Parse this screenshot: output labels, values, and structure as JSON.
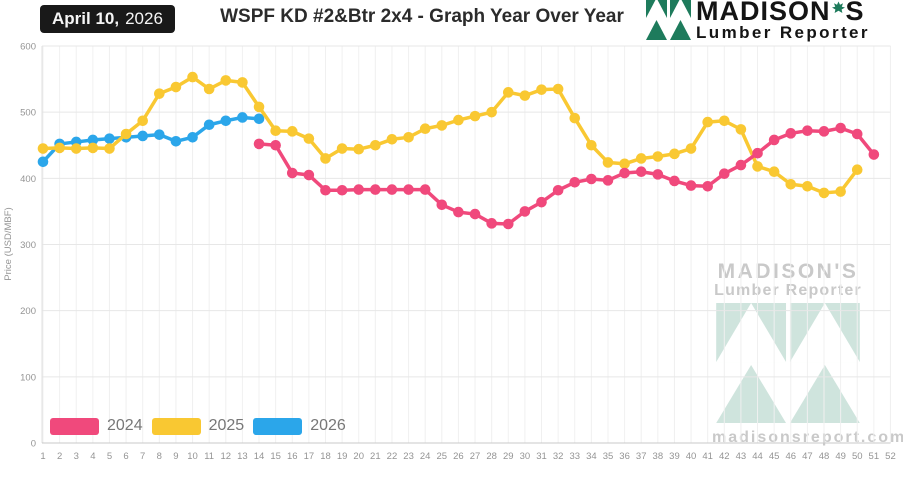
{
  "header": {
    "date_badge": {
      "date": "April 10,",
      "year": "2026"
    },
    "title": "WSPF KD #2&Btr 2x4 - Graph Year Over Year",
    "brand": {
      "name": "MADISON'S",
      "name_pre": "MADISON",
      "name_post": "S",
      "subtitle": "Lumber Reporter"
    }
  },
  "watermark": {
    "title": "MADISON'S",
    "subtitle": "Lumber Reporter",
    "url": "madisonsreport.com"
  },
  "colors": {
    "badge_bg": "#191919",
    "badge_text": "#f5f5f5",
    "logo_green": "#1E7B5C",
    "watermark_green": "#cfe4dd",
    "watermark_text": "#c9c9c9",
    "axis_text": "#949494",
    "legend_text": "#777777",
    "grid_horizontal": "#e7e7e7",
    "grid_vertical": "#f0f0f0",
    "axis_line_x": "#c9c9c9",
    "axis_line_y": "#e0e0e0"
  },
  "chart_data": {
    "type": "line",
    "title": "WSPF KD #2&Btr 2x4 - Graph Year Over Year",
    "xlabel": "",
    "ylabel": "Price (USD/MBF)",
    "ylim": [
      0,
      600
    ],
    "yticks": [
      0,
      100,
      200,
      300,
      400,
      500,
      600
    ],
    "xticks": [
      1,
      2,
      3,
      4,
      5,
      6,
      7,
      8,
      9,
      10,
      11,
      12,
      13,
      14,
      15,
      16,
      17,
      18,
      19,
      20,
      21,
      22,
      23,
      24,
      25,
      26,
      27,
      28,
      29,
      30,
      31,
      32,
      33,
      34,
      35,
      36,
      37,
      38,
      39,
      40,
      41,
      42,
      43,
      44,
      45,
      46,
      47,
      48,
      49,
      50,
      51,
      52
    ],
    "x_unit": "week",
    "grid": true,
    "legend_position": "bottom-left",
    "series": [
      {
        "name": "2024",
        "color": "#F0497C",
        "start_week": 14,
        "values": [
          452,
          450,
          408,
          405,
          382,
          382,
          383,
          383,
          383,
          383,
          383,
          360,
          349,
          346,
          332,
          331,
          350,
          364,
          382,
          394,
          399,
          397,
          408,
          410,
          406,
          396,
          389,
          388,
          407,
          420,
          438,
          458,
          468,
          472,
          471,
          476,
          467,
          436
        ]
      },
      {
        "name": "2025",
        "color": "#F9C832",
        "start_week": 1,
        "values": [
          445,
          446,
          445,
          446,
          445,
          467,
          487,
          528,
          538,
          553,
          535,
          548,
          545,
          508,
          472,
          471,
          460,
          430,
          445,
          444,
          450,
          459,
          462,
          475,
          480,
          488,
          494,
          500,
          530,
          525,
          534,
          535,
          491,
          450,
          424,
          422,
          430,
          433,
          437,
          445,
          485,
          487,
          474,
          418,
          410,
          391,
          388,
          378,
          380,
          413
        ]
      },
      {
        "name": "2026",
        "color": "#2BA6EA",
        "start_week": 1,
        "values": [
          425,
          452,
          455,
          458,
          460,
          462,
          464,
          466,
          456,
          462,
          481,
          487,
          492,
          490
        ]
      }
    ]
  }
}
